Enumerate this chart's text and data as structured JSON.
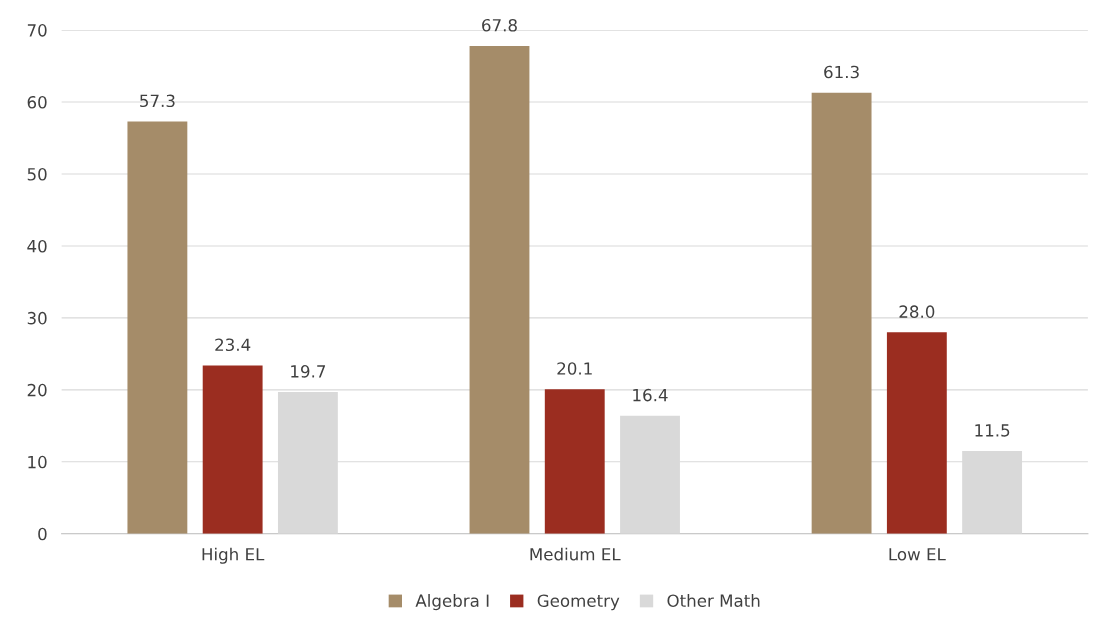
{
  "chart_data": {
    "type": "bar",
    "categories": [
      "High EL",
      "Medium EL",
      "Low EL"
    ],
    "series": [
      {
        "name": "Algebra I",
        "color": "#a58c69",
        "values": [
          57.3,
          67.8,
          61.3
        ]
      },
      {
        "name": "Geometry",
        "color": "#9b2d20",
        "values": [
          23.4,
          20.1,
          28.0
        ]
      },
      {
        "name": "Other Math",
        "color": "#d9d9d9",
        "values": [
          19.7,
          16.4,
          11.5
        ]
      }
    ],
    "value_labels": [
      [
        "57.3",
        "67.8",
        "61.3"
      ],
      [
        "23.4",
        "20.1",
        "28.0"
      ],
      [
        "19.7",
        "16.4",
        "11.5"
      ]
    ],
    "ylim": [
      0,
      70
    ],
    "yticks": [
      0,
      10,
      20,
      30,
      40,
      50,
      60,
      70
    ],
    "grid": "y",
    "legend": "bottom"
  }
}
